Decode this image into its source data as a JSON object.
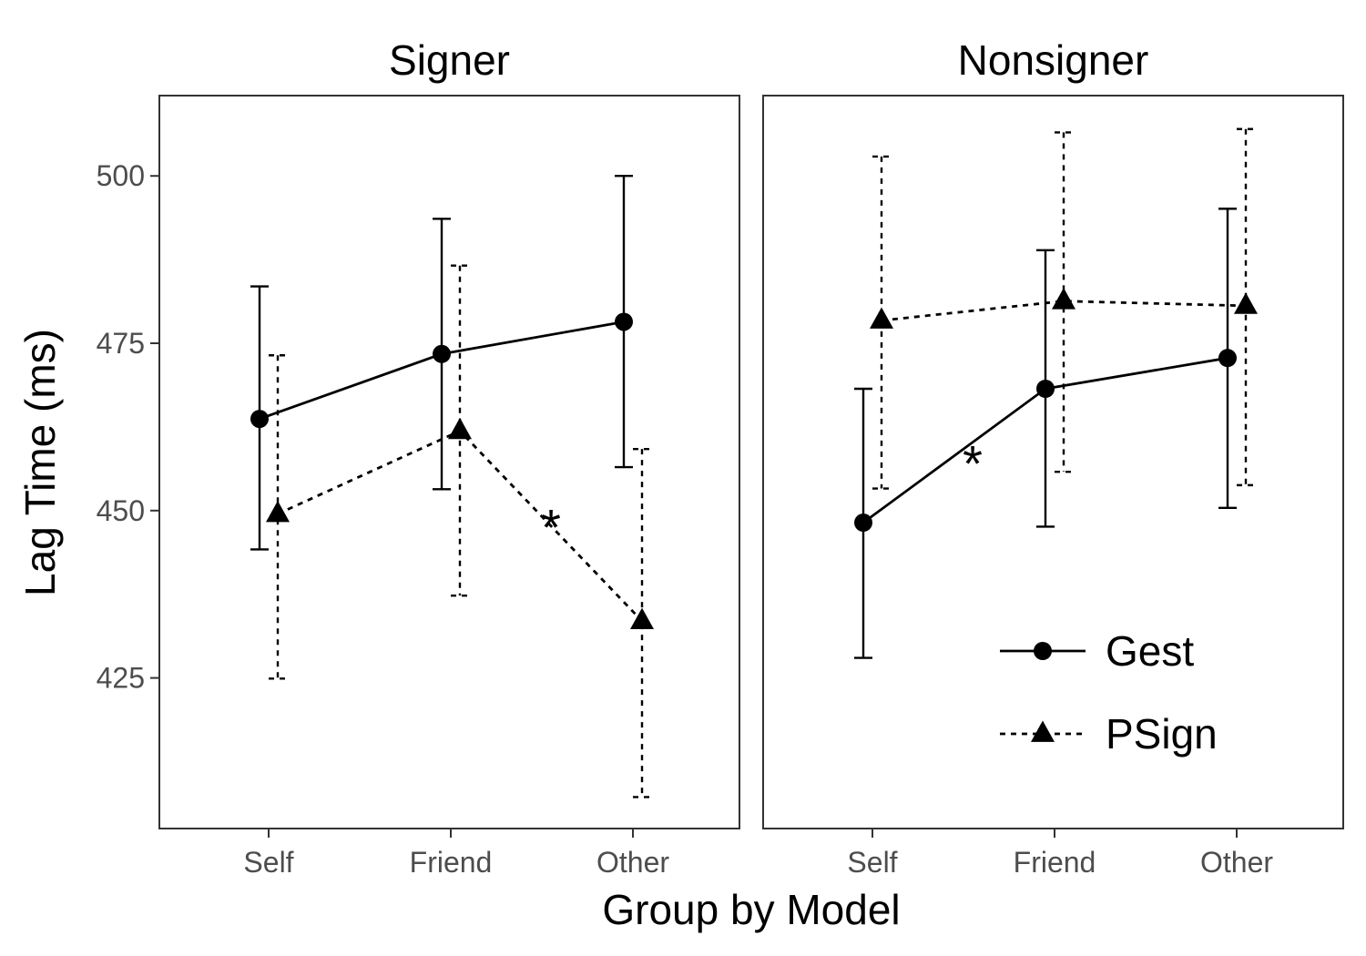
{
  "chart_data": {
    "type": "line",
    "xlabel": "Group by Model",
    "ylabel": "Lag Time (ms)",
    "categories": [
      "Self",
      "Friend",
      "Other"
    ],
    "y_ticks": [
      425,
      450,
      475,
      500
    ],
    "ylim": [
      402.5,
      512
    ],
    "legend": {
      "position": "inside-bottom-right",
      "entries": [
        "Gest",
        "PSign"
      ]
    },
    "panels": [
      {
        "title": "Signer",
        "series": [
          {
            "name": "Gest",
            "marker": "circle",
            "line": "solid",
            "values": [
              463.7,
              473.4,
              478.2
            ],
            "lower": [
              444.2,
              453.2,
              456.5
            ],
            "upper": [
              483.5,
              493.6,
              500.0
            ]
          },
          {
            "name": "PSign",
            "marker": "triangle",
            "line": "dashed",
            "values": [
              449.5,
              461.9,
              433.5
            ],
            "lower": [
              424.9,
              437.3,
              407.2
            ],
            "upper": [
              473.2,
              486.6,
              459.2
            ]
          }
        ],
        "annotations": [
          {
            "text": "*",
            "x_between": [
              "Friend",
              "Other"
            ],
            "y": 449.5
          }
        ]
      },
      {
        "title": "Nonsigner",
        "series": [
          {
            "name": "Gest",
            "marker": "circle",
            "line": "solid",
            "values": [
              448.2,
              468.2,
              472.8
            ],
            "lower": [
              428.0,
              447.6,
              450.4
            ],
            "upper": [
              468.2,
              488.9,
              495.1
            ]
          },
          {
            "name": "PSign",
            "marker": "triangle",
            "line": "dashed",
            "values": [
              478.4,
              481.3,
              480.6
            ],
            "lower": [
              453.3,
              455.8,
              453.8
            ],
            "upper": [
              502.9,
              506.5,
              507.0
            ]
          }
        ],
        "annotations": [
          {
            "text": "*",
            "x_between": [
              "Self",
              "Friend"
            ],
            "y": 459.0
          }
        ]
      }
    ]
  }
}
